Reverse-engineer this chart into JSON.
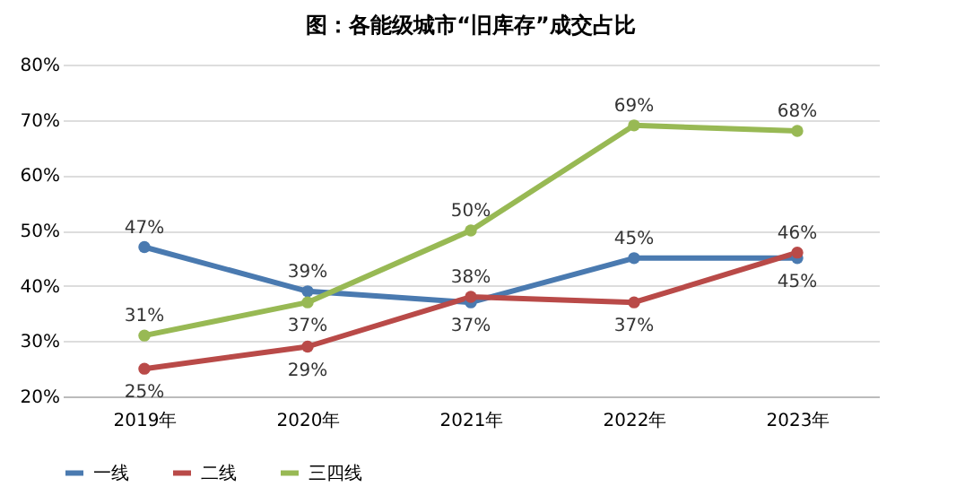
{
  "chart_data": {
    "type": "line",
    "title": "图：各能级城市“旧库存”成交占比",
    "categories": [
      "2019年",
      "2020年",
      "2021年",
      "2022年",
      "2023年"
    ],
    "series": [
      {
        "name": "一线",
        "color": "#4a7ab0",
        "values": [
          47,
          39,
          37,
          45,
          45
        ],
        "value_labels": [
          "47%",
          "39%",
          "37%",
          "45%",
          "45%"
        ]
      },
      {
        "name": "二线",
        "color": "#b94a48",
        "values": [
          25,
          29,
          38,
          37,
          46
        ],
        "value_labels": [
          "25%",
          "29%",
          "38%",
          "37%",
          "46%"
        ]
      },
      {
        "name": "三四线",
        "color": "#98b954",
        "values": [
          31,
          37,
          50,
          69,
          68
        ],
        "value_labels": [
          "31%",
          "37%",
          "50%",
          "69%",
          "68%"
        ]
      }
    ],
    "ylim": [
      20,
      80
    ],
    "yticks": [
      {
        "value": 20,
        "label": "20%"
      },
      {
        "value": 30,
        "label": "30%"
      },
      {
        "value": 40,
        "label": "40%"
      },
      {
        "value": 50,
        "label": "50%"
      },
      {
        "value": 60,
        "label": "60%"
      },
      {
        "value": 70,
        "label": "70%"
      },
      {
        "value": 80,
        "label": "80%"
      }
    ],
    "grid": "y",
    "legend": "bottom",
    "marker": "circle",
    "line_style": "solid"
  }
}
